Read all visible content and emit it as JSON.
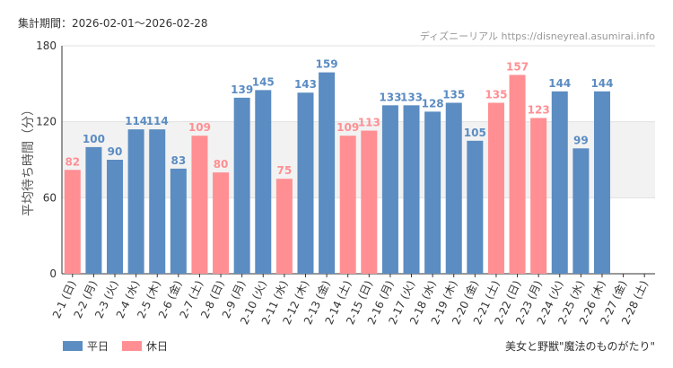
{
  "chart_data": {
    "type": "bar",
    "period": "集計期間：2026-02-01〜2026-02-28",
    "source": "ディズニーリアル https://disneyreal.asumirai.info",
    "attraction": "美女と野獣\"魔法のものがたり\"",
    "y_label": "平均待ち時間（分）",
    "categories": [
      "2-1 (日)",
      "2-2 (月)",
      "2-3 (火)",
      "2-4 (水)",
      "2-5 (木)",
      "2-6 (金)",
      "2-7 (土)",
      "2-8 (日)",
      "2-9 (月)",
      "2-10 (火)",
      "2-11 (水)",
      "2-12 (木)",
      "2-13 (金)",
      "2-14 (土)",
      "2-15 (日)",
      "2-16 (月)",
      "2-17 (火)",
      "2-18 (水)",
      "2-19 (木)",
      "2-20 (金)",
      "2-21 (土)",
      "2-22 (日)",
      "2-23 (月)",
      "2-24 (火)",
      "2-25 (水)",
      "2-26 (木)",
      "2-27 (金)",
      "2-28 (土)"
    ],
    "category_colors": [
      "#f0787e",
      "#333333",
      "#333333",
      "#333333",
      "#333333",
      "#333333",
      "#f0787e",
      "#f0787e",
      "#333333",
      "#333333",
      "#f0787e",
      "#333333",
      "#333333",
      "#f0787e",
      "#f0787e",
      "#333333",
      "#333333",
      "#333333",
      "#333333",
      "#333333",
      "#f0787e",
      "#f0787e",
      "#f0787e",
      "#333333",
      "#333333",
      "#333333",
      "#333333",
      "#f0787e"
    ],
    "series": [
      {
        "name": "平日",
        "color": "#5b8cc2",
        "values": [
          null,
          100,
          90,
          114,
          114,
          83,
          null,
          null,
          139,
          145,
          null,
          143,
          159,
          null,
          null,
          133,
          133,
          128,
          135,
          105,
          null,
          null,
          null,
          144,
          99,
          144,
          null,
          null
        ]
      },
      {
        "name": "休日",
        "color": "#ff8f93",
        "values": [
          82,
          null,
          null,
          null,
          null,
          null,
          109,
          80,
          null,
          null,
          75,
          null,
          null,
          109,
          113,
          null,
          null,
          null,
          null,
          null,
          135,
          157,
          123,
          null,
          null,
          null,
          null,
          null
        ]
      }
    ],
    "ylim": [
      0,
      180
    ],
    "yticks": [
      0,
      60,
      120,
      180
    ],
    "grid": true,
    "shaded_band": [
      60,
      120
    ],
    "legend": "bottom-left"
  }
}
